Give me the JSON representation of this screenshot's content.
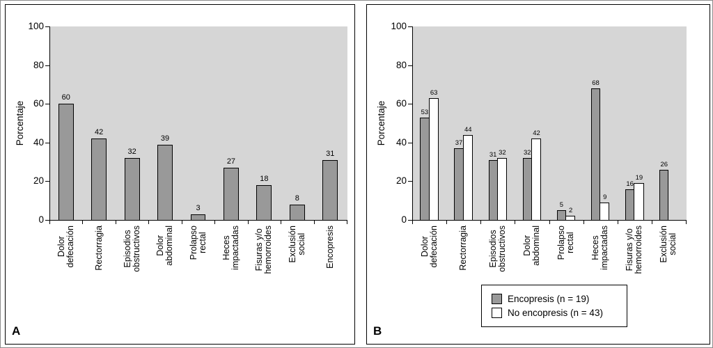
{
  "figure": {
    "panel_letters": [
      "A",
      "B"
    ]
  },
  "chart_data": [
    {
      "type": "bar",
      "panel_label": "A",
      "ylabel": "Porcentaje",
      "ylim": [
        0,
        100
      ],
      "yticks": [
        0,
        20,
        40,
        60,
        80,
        100
      ],
      "grid": false,
      "legend_position": "none",
      "plot_background": "#d6d6d6",
      "categories": [
        "Dolor\ndefecación",
        "Rectorragia",
        "Episodios\nobstructivos",
        "Dolor\nabdominal",
        "Prolapso\nrectal",
        "Heces\nimpactadas",
        "Fisuras y/o\nhemorroides",
        "Exclusión\nsocial",
        "Encopresis"
      ],
      "series": [
        {
          "name": "",
          "color": "#999999",
          "border": "#000000",
          "values": [
            60,
            42,
            32,
            39,
            3,
            27,
            18,
            8,
            31
          ]
        }
      ],
      "value_labels": true
    },
    {
      "type": "bar",
      "panel_label": "B",
      "ylabel": "Porcentaje",
      "ylim": [
        0,
        100
      ],
      "yticks": [
        0,
        20,
        40,
        60,
        80,
        100
      ],
      "grid": false,
      "legend_position": "bottom",
      "plot_background": "#d6d6d6",
      "categories": [
        "Dolor\ndefecación",
        "Rectorragia",
        "Episodios\nobstructivos",
        "Dolor\nabdominal",
        "Prolapso\nrectal",
        "Heces\nimpactadas",
        "Fisuras y/o\nhemorroides",
        "Exclusión\nsocial"
      ],
      "series": [
        {
          "name": "Encopresis (n = 19)",
          "color": "#999999",
          "border": "#000000",
          "values": [
            53,
            37,
            31,
            32,
            5,
            68,
            16,
            26
          ]
        },
        {
          "name": "No encopresis (n = 43)",
          "color": "#ffffff",
          "border": "#000000",
          "values": [
            63,
            44,
            32,
            42,
            2,
            9,
            19,
            null
          ]
        }
      ],
      "value_labels": true
    }
  ]
}
